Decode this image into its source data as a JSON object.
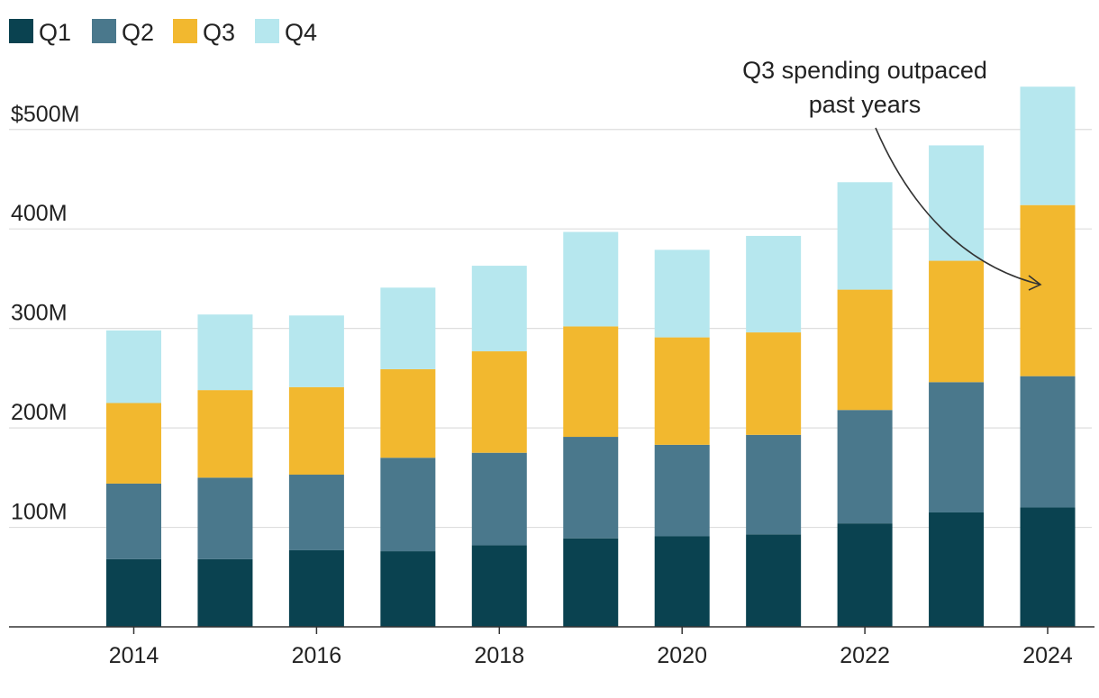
{
  "chart_data": {
    "type": "bar",
    "stacked": true,
    "title": "",
    "xlabel": "",
    "ylabel": "",
    "categories": [
      "2014",
      "2015",
      "2016",
      "2017",
      "2018",
      "2019",
      "2020",
      "2021",
      "2022",
      "2023",
      "2024"
    ],
    "series": [
      {
        "name": "Q1",
        "color": "#0a4250",
        "values": [
          68,
          68,
          77,
          76,
          82,
          89,
          91,
          93,
          104,
          115,
          120
        ]
      },
      {
        "name": "Q2",
        "color": "#4a788c",
        "values": [
          76,
          82,
          76,
          94,
          93,
          102,
          92,
          100,
          114,
          131,
          132
        ]
      },
      {
        "name": "Q3",
        "color": "#f2b82f",
        "values": [
          81,
          88,
          88,
          89,
          102,
          111,
          108,
          103,
          121,
          122,
          172
        ]
      },
      {
        "name": "Q4",
        "color": "#b6e7ee",
        "values": [
          73,
          76,
          72,
          82,
          86,
          95,
          88,
          97,
          108,
          116,
          119
        ]
      }
    ],
    "ylim": [
      0,
      545
    ],
    "yticks": [
      100,
      200,
      300,
      400,
      500
    ],
    "ytick_labels": [
      "100M",
      "200M",
      "300M",
      "400M",
      "$500M"
    ],
    "xticks": [
      "2014",
      "2016",
      "2018",
      "2020",
      "2022",
      "2024"
    ],
    "grid": true,
    "legend_position": "top-left",
    "annotation": {
      "lines": [
        "Q3 spending outpaced",
        "past years"
      ],
      "target_category": "2024",
      "target_series": "Q3"
    }
  }
}
